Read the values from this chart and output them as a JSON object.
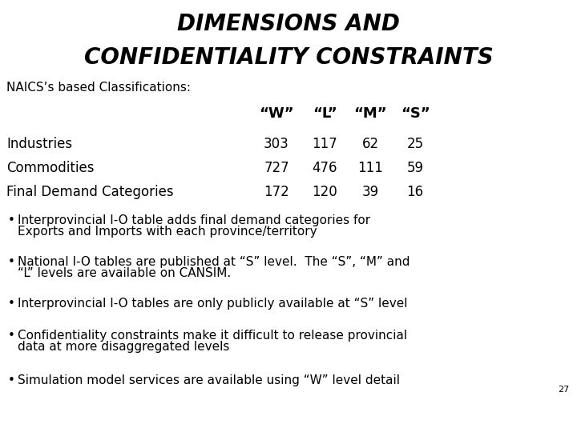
{
  "title_line1": "DIMENSIONS AND",
  "title_line2": "CONFIDENTIALITY CONSTRAINTS",
  "subtitle": "NAICS’s based Classifications:",
  "col_headers": [
    "“W”",
    "“L”",
    "“M”",
    "“S”"
  ],
  "row_labels": [
    "Industries",
    "Commodities",
    "Final Demand Categories"
  ],
  "table_data": [
    [
      303,
      117,
      62,
      25
    ],
    [
      727,
      476,
      111,
      59
    ],
    [
      172,
      120,
      39,
      16
    ]
  ],
  "bullets": [
    "Interprovincial I-O table adds final demand categories for\nExports and Imports with each province/territory",
    "National I-O tables are published at “S” level.  The “S”, “M” and\n“L” levels are available on CANSIM.",
    "Interprovincial I-O tables are only publicly available at “S” level",
    "Confidentiality constraints make it difficult to release provincial\ndata at more disaggregated levels",
    "Simulation model services are available using “W” level detail"
  ],
  "page_number": "27",
  "bg_color": "#ffffff",
  "text_color": "#000000",
  "title_fontsize": 20,
  "subtitle_fontsize": 11,
  "table_header_fontsize": 13,
  "table_fontsize": 12,
  "bullet_fontsize": 11
}
